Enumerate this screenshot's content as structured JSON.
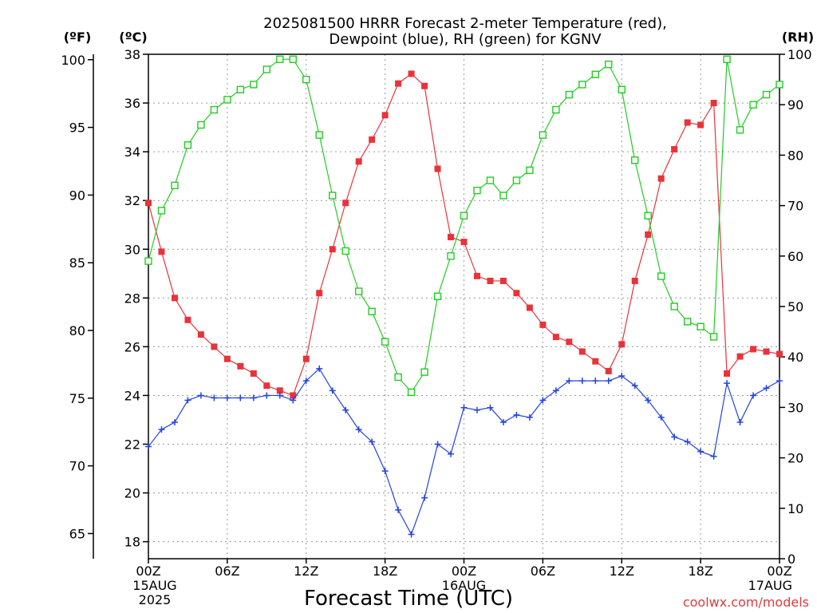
{
  "chart_data": {
    "type": "line",
    "title": [
      "2025081500 HRRR Forecast 2-meter Temperature (red),",
      "Dewpoint (blue), RH (green) for KGNV"
    ],
    "xlabel": "Forecast Time (UTC)",
    "watermark": "coolwx.com/models",
    "units": {
      "fahrenheit": "(ºF)",
      "celsius": "(ºC)",
      "rh": "(RH)"
    },
    "x": {
      "range_hours": [
        0,
        48
      ],
      "step_hours": 1
    },
    "x_ticks": [
      {
        "hour": 0,
        "lines": [
          "00Z",
          "15AUG",
          "2025"
        ]
      },
      {
        "hour": 6,
        "lines": [
          "06Z"
        ]
      },
      {
        "hour": 12,
        "lines": [
          "12Z"
        ]
      },
      {
        "hour": 18,
        "lines": [
          "18Z"
        ]
      },
      {
        "hour": 24,
        "lines": [
          "00Z",
          "16AUG"
        ]
      },
      {
        "hour": 30,
        "lines": [
          "06Z"
        ]
      },
      {
        "hour": 36,
        "lines": [
          "12Z"
        ]
      },
      {
        "hour": 42,
        "lines": [
          "18Z"
        ]
      },
      {
        "hour": 48,
        "lines": [
          "00Z",
          "17AUG"
        ]
      }
    ],
    "y_celsius": {
      "range": [
        17.3,
        38.0
      ],
      "ticks": [
        18,
        20,
        22,
        24,
        26,
        28,
        30,
        32,
        34,
        36,
        38
      ]
    },
    "y_fahrenheit": {
      "ticks": [
        65,
        70,
        75,
        80,
        85,
        90,
        95,
        100
      ]
    },
    "y_rh": {
      "range": [
        0,
        100
      ],
      "ticks": [
        0,
        10,
        20,
        30,
        40,
        50,
        60,
        70,
        80,
        90,
        100
      ]
    },
    "grid": true,
    "series": [
      {
        "name": "2-meter Temperature",
        "axis": "celsius",
        "color": "#e8333a",
        "marker": "filled-square",
        "values": [
          31.9,
          29.9,
          28.0,
          27.1,
          26.5,
          26.0,
          25.5,
          25.2,
          24.9,
          24.4,
          24.2,
          24.0,
          25.5,
          28.2,
          30.0,
          31.9,
          33.6,
          34.5,
          35.5,
          36.8,
          37.2,
          36.7,
          33.3,
          30.5,
          30.3,
          28.9,
          28.7,
          28.7,
          28.2,
          27.6,
          26.9,
          26.4,
          26.2,
          25.8,
          25.4,
          25.0,
          26.1,
          28.7,
          30.6,
          32.9,
          34.1,
          35.2,
          35.1,
          36.0,
          24.9,
          25.6,
          25.9,
          25.8,
          25.7
        ]
      },
      {
        "name": "Dewpoint",
        "axis": "celsius",
        "color": "#2244dd",
        "marker": "plus",
        "values": [
          21.9,
          22.6,
          22.9,
          23.8,
          24.0,
          23.9,
          23.9,
          23.9,
          23.9,
          24.0,
          24.0,
          23.8,
          24.6,
          25.1,
          24.2,
          23.4,
          22.6,
          22.1,
          20.9,
          19.3,
          18.3,
          19.8,
          22.0,
          21.6,
          23.5,
          23.4,
          23.5,
          22.9,
          23.2,
          23.1,
          23.8,
          24.2,
          24.6,
          24.6,
          24.6,
          24.6,
          24.8,
          24.4,
          23.8,
          23.1,
          22.3,
          22.1,
          21.7,
          21.5,
          24.5,
          22.9,
          24.0,
          24.3,
          24.6
        ]
      },
      {
        "name": "RH",
        "axis": "rh",
        "color": "#22cc22",
        "marker": "open-square",
        "values": [
          59,
          69,
          74,
          82,
          86,
          89,
          91,
          93,
          94,
          97,
          99,
          99,
          95,
          84,
          72,
          61,
          53,
          49,
          43,
          36,
          33,
          37,
          52,
          60,
          68,
          73,
          75,
          72,
          75,
          77,
          84,
          89,
          92,
          94,
          96,
          98,
          93,
          79,
          68,
          56,
          50,
          47,
          46,
          44,
          99,
          85,
          90,
          92,
          94
        ]
      }
    ]
  }
}
